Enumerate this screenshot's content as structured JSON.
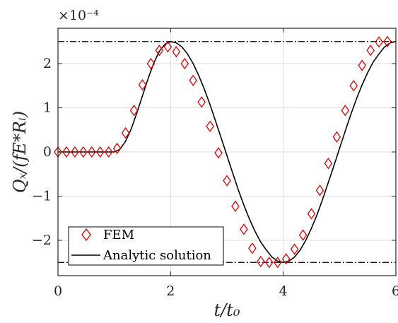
{
  "chart_data": {
    "type": "line",
    "xlabel": "t/t₀",
    "ylabel": "Qₓ/(fE*Rᵢ)",
    "exponent_label": "×10⁻⁴",
    "xlim": [
      0,
      6
    ],
    "ylim": [
      -2.8,
      2.8
    ],
    "x_ticks": [
      0,
      2,
      4,
      6
    ],
    "x_tick_labels": [
      "0",
      "2",
      "4",
      "6"
    ],
    "y_ticks": [
      -2,
      -1,
      0,
      1,
      2
    ],
    "y_tick_labels": [
      "−2",
      "−1",
      "0",
      "1",
      "2"
    ],
    "grid": true,
    "legend_position": "bottom-left",
    "reference_lines": [
      2.5,
      -2.5
    ],
    "series": [
      {
        "name": "FEM",
        "style": "red-diamond-markers",
        "color": "#dd0000",
        "x": [
          0.0,
          0.15,
          0.3,
          0.45,
          0.6,
          0.75,
          0.9,
          1.05,
          1.2,
          1.35,
          1.5,
          1.65,
          1.8,
          1.95,
          2.1,
          2.25,
          2.4,
          2.55,
          2.7,
          2.85,
          3.0,
          3.15,
          3.3,
          3.45,
          3.6,
          3.75,
          3.9,
          4.05,
          4.2,
          4.35,
          4.5,
          4.65,
          4.8,
          4.95,
          5.1,
          5.25,
          5.4,
          5.55,
          5.7,
          5.85
        ],
        "y": [
          0.0,
          0.0,
          0.0,
          0.0,
          0.0,
          0.0,
          0.0,
          0.08,
          0.43,
          0.94,
          1.52,
          2.0,
          2.3,
          2.38,
          2.27,
          2.0,
          1.62,
          1.13,
          0.58,
          -0.02,
          -0.65,
          -1.23,
          -1.75,
          -2.18,
          -2.48,
          -2.5,
          -2.5,
          -2.42,
          -2.2,
          -1.88,
          -1.4,
          -0.87,
          -0.26,
          0.34,
          0.94,
          1.5,
          1.96,
          2.3,
          2.49,
          2.5
        ]
      },
      {
        "name": "Analytic solution",
        "style": "black-line",
        "color": "#000000",
        "x": [
          0.0,
          1.0,
          1.1,
          1.2,
          1.3,
          1.4,
          1.5,
          1.6,
          1.7,
          1.8,
          1.9,
          2.0,
          2.1,
          2.2,
          2.3,
          2.4,
          2.5,
          2.6,
          2.7,
          2.8,
          2.9,
          3.0,
          3.1,
          3.2,
          3.3,
          3.4,
          3.5,
          3.6,
          3.7,
          3.8,
          3.9,
          4.0,
          4.1,
          4.2,
          4.3,
          4.4,
          4.5,
          4.6,
          4.7,
          4.8,
          4.9,
          5.0,
          5.1,
          5.2,
          5.3,
          5.4,
          5.5,
          5.6,
          5.7,
          5.8,
          5.9,
          6.0
        ],
        "y": [
          0.0,
          0.0,
          0.06,
          0.24,
          0.52,
          0.88,
          1.27,
          1.66,
          2.01,
          2.28,
          2.44,
          2.5,
          2.47,
          2.38,
          2.22,
          2.0,
          1.73,
          1.42,
          1.07,
          0.69,
          0.31,
          -0.08,
          -0.47,
          -0.85,
          -1.2,
          -1.52,
          -1.8,
          -2.04,
          -2.22,
          -2.38,
          -2.47,
          -2.5,
          -2.47,
          -2.38,
          -2.22,
          -2.0,
          -1.73,
          -1.42,
          -1.07,
          -0.69,
          -0.31,
          0.08,
          0.47,
          0.85,
          1.2,
          1.52,
          1.8,
          2.04,
          2.22,
          2.38,
          2.47,
          2.5
        ]
      }
    ]
  }
}
